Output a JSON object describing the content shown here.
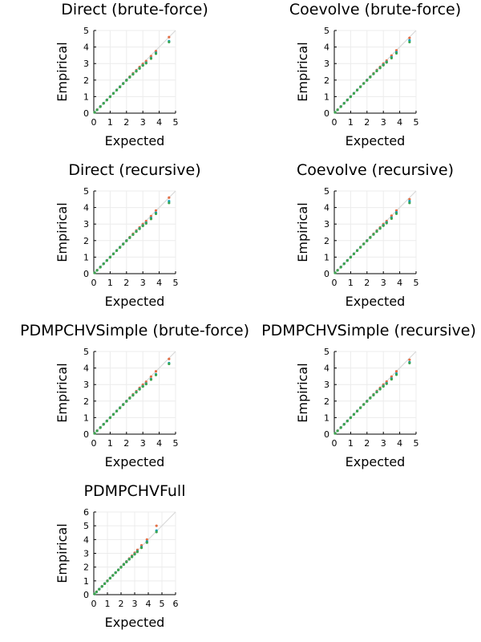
{
  "colors": {
    "diagonal": "#d9d9d9",
    "grid": "#ececec",
    "axis": "#000000",
    "series": [
      "#0aa2be",
      "#e26f46",
      "#3da44d",
      "#c271d2",
      "#ac8d18",
      "#009af9"
    ]
  },
  "chart_data": [
    {
      "type": "scatter",
      "title": "Direct (brute-force)",
      "xlabel": "Expected",
      "ylabel": "Empirical",
      "xlim": [
        0,
        5
      ],
      "ylim": [
        0,
        5
      ],
      "xticks": [
        "0",
        "1",
        "2",
        "3",
        "4",
        "5"
      ],
      "yticks": [
        "0",
        "1",
        "2",
        "3",
        "4",
        "5"
      ],
      "grid": true,
      "legend": "none",
      "reference_line": "y = x",
      "x": [
        0.05,
        0.2,
        0.4,
        0.6,
        0.8,
        1.0,
        1.2,
        1.4,
        1.6,
        1.8,
        2.0,
        2.2,
        2.4,
        2.6,
        2.8,
        3.0,
        3.2,
        3.5,
        3.8,
        4.6
      ],
      "series": [
        {
          "values": [
            0.05,
            0.2,
            0.4,
            0.6,
            0.8,
            1.0,
            1.2,
            1.4,
            1.6,
            1.8,
            2.0,
            2.18,
            2.37,
            2.55,
            2.72,
            2.9,
            3.05,
            3.33,
            3.65,
            4.35
          ]
        },
        {
          "values": [
            0.05,
            0.21,
            0.41,
            0.61,
            0.81,
            1.01,
            1.21,
            1.41,
            1.61,
            1.81,
            2.01,
            2.21,
            2.41,
            2.6,
            2.79,
            2.98,
            3.15,
            3.45,
            3.75,
            4.6
          ]
        },
        {
          "values": [
            0.05,
            0.2,
            0.39,
            0.59,
            0.79,
            0.99,
            1.19,
            1.39,
            1.58,
            1.78,
            1.98,
            2.17,
            2.35,
            2.53,
            2.7,
            2.88,
            3.02,
            3.3,
            3.6,
            4.3
          ]
        }
      ]
    },
    {
      "type": "scatter",
      "title": "Coevolve (brute-force)",
      "xlabel": "Expected",
      "ylabel": "Empirical",
      "xlim": [
        0,
        5
      ],
      "ylim": [
        0,
        5
      ],
      "xticks": [
        "0",
        "1",
        "2",
        "3",
        "4",
        "5"
      ],
      "yticks": [
        "0",
        "1",
        "2",
        "3",
        "4",
        "5"
      ],
      "grid": true,
      "legend": "none",
      "reference_line": "y = x",
      "x": [
        0.05,
        0.2,
        0.4,
        0.6,
        0.8,
        1.0,
        1.2,
        1.4,
        1.6,
        1.8,
        2.0,
        2.2,
        2.4,
        2.6,
        2.8,
        3.0,
        3.2,
        3.5,
        3.8,
        4.6
      ],
      "series": [
        {
          "values": [
            0.05,
            0.2,
            0.4,
            0.6,
            0.8,
            1.0,
            1.2,
            1.4,
            1.6,
            1.8,
            2.0,
            2.19,
            2.38,
            2.57,
            2.75,
            2.93,
            3.1,
            3.38,
            3.68,
            4.4
          ]
        },
        {
          "values": [
            0.05,
            0.21,
            0.41,
            0.61,
            0.81,
            1.01,
            1.21,
            1.41,
            1.61,
            1.81,
            2.01,
            2.21,
            2.41,
            2.61,
            2.8,
            3.0,
            3.18,
            3.48,
            3.8,
            4.55
          ]
        },
        {
          "values": [
            0.05,
            0.2,
            0.39,
            0.59,
            0.79,
            0.99,
            1.19,
            1.39,
            1.59,
            1.79,
            1.98,
            2.18,
            2.37,
            2.55,
            2.73,
            2.9,
            3.07,
            3.33,
            3.62,
            4.3
          ]
        }
      ]
    },
    {
      "type": "scatter",
      "title": "Direct (recursive)",
      "xlabel": "Expected",
      "ylabel": "Empirical",
      "xlim": [
        0,
        5
      ],
      "ylim": [
        0,
        5
      ],
      "xticks": [
        "0",
        "1",
        "2",
        "3",
        "4",
        "5"
      ],
      "yticks": [
        "0",
        "1",
        "2",
        "3",
        "4",
        "5"
      ],
      "grid": true,
      "legend": "none",
      "reference_line": "y = x",
      "x": [
        0.05,
        0.2,
        0.4,
        0.6,
        0.8,
        1.0,
        1.2,
        1.4,
        1.6,
        1.8,
        2.0,
        2.2,
        2.4,
        2.6,
        2.8,
        3.0,
        3.2,
        3.5,
        3.8,
        4.6
      ],
      "series": [
        {
          "values": [
            0.05,
            0.2,
            0.4,
            0.6,
            0.8,
            1.0,
            1.2,
            1.4,
            1.6,
            1.8,
            2.0,
            2.18,
            2.37,
            2.56,
            2.74,
            2.92,
            3.08,
            3.36,
            3.68,
            4.38
          ]
        },
        {
          "values": [
            0.05,
            0.21,
            0.41,
            0.61,
            0.81,
            1.01,
            1.21,
            1.41,
            1.61,
            1.81,
            2.01,
            2.21,
            2.41,
            2.61,
            2.8,
            3.0,
            3.18,
            3.48,
            3.82,
            4.6
          ]
        },
        {
          "values": [
            0.05,
            0.2,
            0.39,
            0.59,
            0.79,
            0.99,
            1.19,
            1.39,
            1.58,
            1.78,
            1.98,
            2.17,
            2.36,
            2.54,
            2.71,
            2.89,
            3.04,
            3.31,
            3.62,
            4.28
          ]
        }
      ]
    },
    {
      "type": "scatter",
      "title": "Coevolve (recursive)",
      "xlabel": "Expected",
      "ylabel": "Empirical",
      "xlim": [
        0,
        5
      ],
      "ylim": [
        0,
        5
      ],
      "xticks": [
        "0",
        "1",
        "2",
        "3",
        "4",
        "5"
      ],
      "yticks": [
        "0",
        "1",
        "2",
        "3",
        "4",
        "5"
      ],
      "grid": true,
      "legend": "none",
      "reference_line": "y = x",
      "x": [
        0.05,
        0.2,
        0.4,
        0.6,
        0.8,
        1.0,
        1.2,
        1.4,
        1.6,
        1.8,
        2.0,
        2.2,
        2.4,
        2.6,
        2.8,
        3.0,
        3.2,
        3.5,
        3.8,
        4.6
      ],
      "series": [
        {
          "values": [
            0.05,
            0.2,
            0.4,
            0.6,
            0.8,
            1.0,
            1.2,
            1.4,
            1.6,
            1.8,
            2.0,
            2.19,
            2.38,
            2.57,
            2.75,
            2.93,
            3.1,
            3.38,
            3.7,
            4.38
          ]
        },
        {
          "values": [
            0.05,
            0.21,
            0.41,
            0.61,
            0.81,
            1.01,
            1.21,
            1.41,
            1.61,
            1.81,
            2.01,
            2.21,
            2.41,
            2.61,
            2.8,
            3.0,
            3.18,
            3.5,
            3.82,
            4.5
          ]
        },
        {
          "values": [
            0.05,
            0.2,
            0.39,
            0.59,
            0.79,
            0.99,
            1.19,
            1.39,
            1.59,
            1.79,
            1.98,
            2.18,
            2.37,
            2.55,
            2.73,
            2.9,
            3.06,
            3.33,
            3.63,
            4.28
          ]
        }
      ]
    },
    {
      "type": "scatter",
      "title": "PDMPCHVSimple (brute-force)",
      "xlabel": "Expected",
      "ylabel": "Empirical",
      "xlim": [
        0,
        5
      ],
      "ylim": [
        0,
        5
      ],
      "xticks": [
        "0",
        "1",
        "2",
        "3",
        "4",
        "5"
      ],
      "yticks": [
        "0",
        "1",
        "2",
        "3",
        "4",
        "5"
      ],
      "grid": true,
      "legend": "none",
      "reference_line": "y = x",
      "x": [
        0.05,
        0.2,
        0.4,
        0.6,
        0.8,
        1.0,
        1.2,
        1.4,
        1.6,
        1.8,
        2.0,
        2.2,
        2.4,
        2.6,
        2.8,
        3.0,
        3.2,
        3.5,
        3.8,
        4.6
      ],
      "series": [
        {
          "values": [
            0.05,
            0.2,
            0.4,
            0.6,
            0.8,
            1.0,
            1.2,
            1.4,
            1.6,
            1.8,
            2.0,
            2.18,
            2.37,
            2.55,
            2.73,
            2.9,
            3.06,
            3.33,
            3.62,
            4.3
          ]
        },
        {
          "values": [
            0.05,
            0.21,
            0.41,
            0.61,
            0.81,
            1.01,
            1.21,
            1.41,
            1.61,
            1.81,
            2.01,
            2.21,
            2.41,
            2.6,
            2.8,
            2.99,
            3.17,
            3.48,
            3.8,
            4.55
          ]
        },
        {
          "values": [
            0.05,
            0.2,
            0.39,
            0.59,
            0.79,
            0.99,
            1.19,
            1.39,
            1.58,
            1.78,
            1.98,
            2.17,
            2.35,
            2.53,
            2.71,
            2.88,
            3.03,
            3.3,
            3.58,
            4.25
          ]
        }
      ]
    },
    {
      "type": "scatter",
      "title": "PDMPCHVSimple (recursive)",
      "xlabel": "Expected",
      "ylabel": "Empirical",
      "xlim": [
        0,
        5
      ],
      "ylim": [
        0,
        5
      ],
      "xticks": [
        "0",
        "1",
        "2",
        "3",
        "4",
        "5"
      ],
      "yticks": [
        "0",
        "1",
        "2",
        "3",
        "4",
        "5"
      ],
      "grid": true,
      "legend": "none",
      "reference_line": "y = x",
      "x": [
        0.05,
        0.2,
        0.4,
        0.6,
        0.8,
        1.0,
        1.2,
        1.4,
        1.6,
        1.8,
        2.0,
        2.2,
        2.4,
        2.6,
        2.8,
        3.0,
        3.2,
        3.5,
        3.8,
        4.6
      ],
      "series": [
        {
          "values": [
            0.05,
            0.2,
            0.4,
            0.6,
            0.8,
            1.0,
            1.2,
            1.4,
            1.6,
            1.8,
            2.0,
            2.19,
            2.38,
            2.56,
            2.74,
            2.92,
            3.08,
            3.36,
            3.66,
            4.35
          ]
        },
        {
          "values": [
            0.05,
            0.21,
            0.41,
            0.61,
            0.81,
            1.01,
            1.21,
            1.41,
            1.61,
            1.81,
            2.01,
            2.21,
            2.41,
            2.61,
            2.8,
            3.0,
            3.18,
            3.48,
            3.8,
            4.5
          ]
        },
        {
          "values": [
            0.05,
            0.2,
            0.39,
            0.59,
            0.79,
            0.99,
            1.19,
            1.39,
            1.59,
            1.79,
            1.98,
            2.18,
            2.36,
            2.54,
            2.72,
            2.89,
            3.05,
            3.32,
            3.6,
            4.3
          ]
        }
      ]
    },
    {
      "type": "scatter",
      "title": "PDMPCHVFull",
      "xlabel": "Expected",
      "ylabel": "Empirical",
      "xlim": [
        0,
        6
      ],
      "ylim": [
        0,
        6
      ],
      "xticks": [
        "0",
        "1",
        "2",
        "3",
        "4",
        "5",
        "6"
      ],
      "yticks": [
        "0",
        "1",
        "2",
        "3",
        "4",
        "5",
        "6"
      ],
      "grid": true,
      "legend": "none",
      "reference_line": "y = x",
      "x": [
        0.05,
        0.2,
        0.4,
        0.6,
        0.8,
        1.0,
        1.2,
        1.4,
        1.6,
        1.8,
        2.0,
        2.2,
        2.4,
        2.6,
        2.8,
        3.0,
        3.2,
        3.5,
        3.9,
        4.6
      ],
      "series": [
        {
          "values": [
            0.05,
            0.2,
            0.4,
            0.6,
            0.8,
            1.0,
            1.2,
            1.4,
            1.6,
            1.8,
            2.0,
            2.2,
            2.39,
            2.58,
            2.77,
            2.96,
            3.15,
            3.45,
            3.85,
            4.65
          ]
        },
        {
          "values": [
            0.05,
            0.21,
            0.41,
            0.61,
            0.81,
            1.01,
            1.21,
            1.41,
            1.61,
            1.81,
            2.02,
            2.22,
            2.42,
            2.62,
            2.83,
            3.04,
            3.25,
            3.58,
            4.0,
            5.0
          ]
        },
        {
          "values": [
            0.05,
            0.2,
            0.39,
            0.59,
            0.79,
            0.99,
            1.19,
            1.39,
            1.59,
            1.79,
            1.98,
            2.18,
            2.37,
            2.56,
            2.74,
            2.93,
            3.11,
            3.4,
            3.78,
            4.55
          ]
        }
      ]
    }
  ]
}
